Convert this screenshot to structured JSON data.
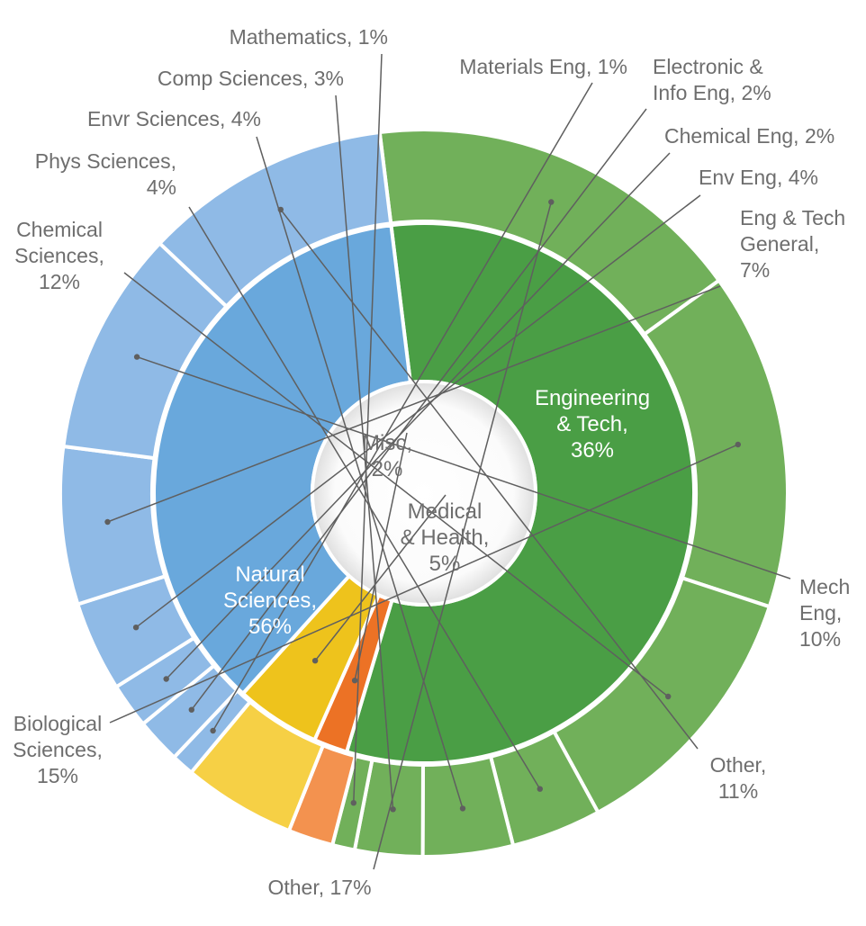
{
  "chart_data": {
    "type": "sunburst",
    "title": "",
    "inner": [
      {
        "name": "Natural Sciences",
        "value": 56,
        "label": [
          "Natural",
          "Sciences,",
          "56%"
        ],
        "color": "#4a9e45"
      },
      {
        "name": "Misc",
        "value": 2,
        "label": [
          "Misc,",
          "2%"
        ],
        "color": "#ec7225"
      },
      {
        "name": "Medical & Health",
        "value": 5,
        "label": [
          "Medical",
          "& Health,",
          "5%"
        ],
        "color": "#eec31c"
      },
      {
        "name": "Engineering & Tech",
        "value": 36,
        "label": [
          "Engineering",
          "& Tech,",
          "36%"
        ],
        "color": "#69a8dc"
      }
    ],
    "outer": [
      {
        "name": "Other",
        "value": 17,
        "group": "Natural Sciences",
        "label": [
          "Other, 17%"
        ],
        "color": "#71b05a"
      },
      {
        "name": "Biological Sciences",
        "value": 15,
        "group": "Natural Sciences",
        "label": [
          "Biological",
          "Sciences,",
          "15%"
        ],
        "color": "#71b05a"
      },
      {
        "name": "Chemical Sciences",
        "value": 12,
        "group": "Natural Sciences",
        "label": [
          "Chemical",
          "Sciences,",
          "12%"
        ],
        "color": "#71b05a"
      },
      {
        "name": "Phys Sciences",
        "value": 4,
        "group": "Natural Sciences",
        "label": [
          "Phys Sciences,",
          "4%"
        ],
        "color": "#71b05a"
      },
      {
        "name": "Envr Sciences",
        "value": 4,
        "group": "Natural Sciences",
        "label": [
          "Envr Sciences, 4%"
        ],
        "color": "#71b05a"
      },
      {
        "name": "Comp Sciences",
        "value": 3,
        "group": "Natural Sciences",
        "label": [
          "Comp Sciences, 3%"
        ],
        "color": "#71b05a"
      },
      {
        "name": "Mathematics",
        "value": 1,
        "group": "Natural Sciences",
        "label": [
          "Mathematics, 1%"
        ],
        "color": "#71b05a"
      },
      {
        "name": "Misc",
        "value": 2,
        "group": "Misc",
        "label": [],
        "color": "#f3924f"
      },
      {
        "name": "Medical & Health",
        "value": 5,
        "group": "Medical & Health",
        "label": [],
        "color": "#f6d045"
      },
      {
        "name": "Materials Eng",
        "value": 1,
        "group": "Engineering & Tech",
        "label": [
          "Materials Eng, 1%"
        ],
        "color": "#8fbae6"
      },
      {
        "name": "Electronic & Info Eng",
        "value": 2,
        "group": "Engineering & Tech",
        "label": [
          "Electronic &",
          "Info Eng, 2%"
        ],
        "color": "#8fbae6"
      },
      {
        "name": "Chemical Eng",
        "value": 2,
        "group": "Engineering & Tech",
        "label": [
          "Chemical Eng, 2%"
        ],
        "color": "#8fbae6"
      },
      {
        "name": "Env Eng",
        "value": 4,
        "group": "Engineering & Tech",
        "label": [
          "Env Eng, 4%"
        ],
        "color": "#8fbae6"
      },
      {
        "name": "Eng & Tech General",
        "value": 7,
        "group": "Engineering & Tech",
        "label": [
          "Eng & Tech",
          "General,",
          "7%"
        ],
        "color": "#8fbae6"
      },
      {
        "name": "Mech Eng",
        "value": 10,
        "group": "Engineering & Tech",
        "label": [
          "Mech",
          "Eng,",
          "10%"
        ],
        "color": "#8fbae6"
      },
      {
        "name": "Other",
        "value": 11,
        "group": "Engineering & Tech",
        "label": [
          "Other,",
          "11%"
        ],
        "color": "#8fbae6"
      }
    ]
  }
}
